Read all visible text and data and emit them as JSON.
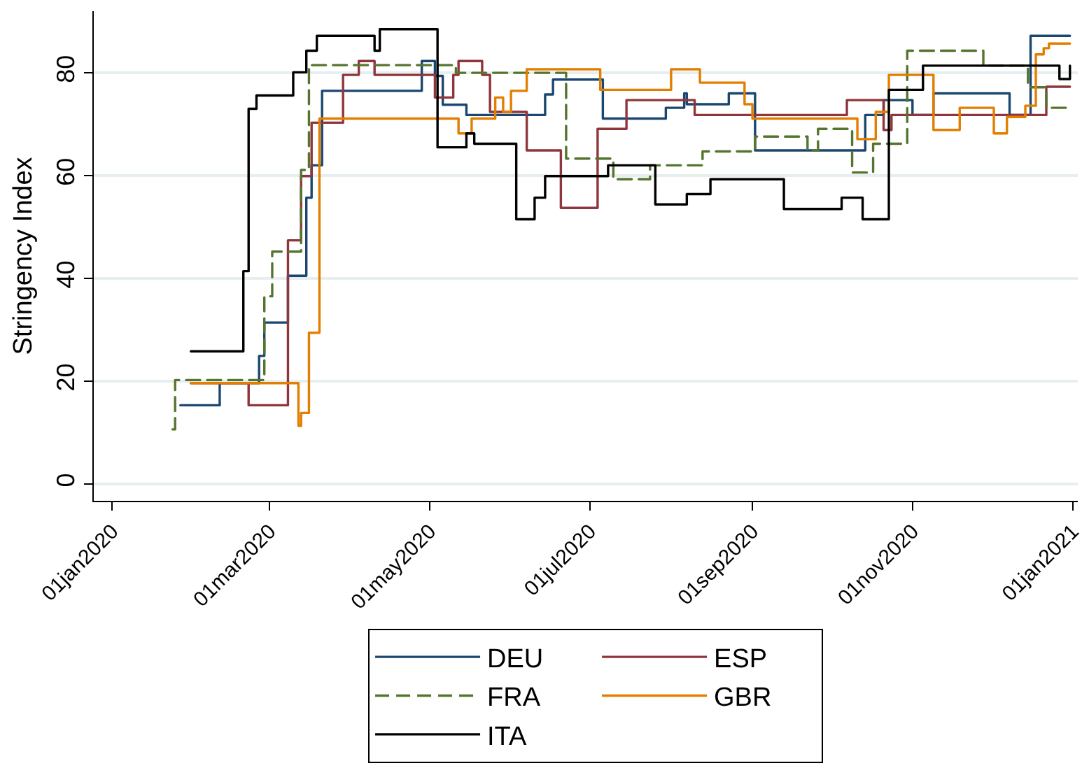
{
  "chart_data": {
    "type": "step",
    "ylabel": "Stringency Index",
    "xlim": [
      "2019-12-25",
      "2021-01-03"
    ],
    "xticks": [
      {
        "value": "2020-01-01",
        "label": "01jan2020"
      },
      {
        "value": "2020-03-01",
        "label": "01mar2020"
      },
      {
        "value": "2020-05-01",
        "label": "01may2020"
      },
      {
        "value": "2020-07-01",
        "label": "01jul2020"
      },
      {
        "value": "2020-09-01",
        "label": "01sep2020"
      },
      {
        "value": "2020-11-01",
        "label": "01nov2020"
      },
      {
        "value": "2021-01-01",
        "label": "01jan2021"
      }
    ],
    "ylim": [
      -3.3,
      92
    ],
    "yticks": [
      0,
      20,
      40,
      60,
      80
    ],
    "grid": "y",
    "legend": "bottom",
    "series": [
      {
        "name": "DEU",
        "color": "#1a476f",
        "line_style": "solid",
        "x": [
          "2020-01-27",
          "2020-02-11",
          "2020-02-26",
          "2020-02-28",
          "2020-03-08",
          "2020-03-15",
          "2020-03-17",
          "2020-03-21",
          "2020-04-28",
          "2020-05-03",
          "2020-05-06",
          "2020-05-15",
          "2020-06-14",
          "2020-06-17",
          "2020-07-06",
          "2020-07-30",
          "2020-08-06",
          "2020-08-07",
          "2020-08-23",
          "2020-09-02",
          "2020-10-14",
          "2020-10-21",
          "2020-11-01",
          "2020-11-09",
          "2020-12-08",
          "2020-12-16",
          "2020-12-31"
        ],
        "values": [
          15.3,
          19.6,
          24.9,
          31.4,
          40.5,
          55.7,
          62.0,
          76.5,
          82.3,
          79.4,
          73.8,
          71.8,
          75.8,
          78.7,
          71.1,
          73.2,
          76.0,
          73.9,
          76.0,
          64.9,
          71.8,
          74.7,
          71.8,
          76.0,
          71.8,
          87.2,
          87.2
        ]
      },
      {
        "name": "ESP",
        "color": "#90353b",
        "line_style": "solid",
        "x": [
          "2020-01-31",
          "2020-02-22",
          "2020-03-08",
          "2020-03-13",
          "2020-03-17",
          "2020-03-29",
          "2020-04-04",
          "2020-04-10",
          "2020-05-03",
          "2020-05-10",
          "2020-05-12",
          "2020-05-21",
          "2020-05-24",
          "2020-06-07",
          "2020-06-20",
          "2020-07-04",
          "2020-07-15",
          "2020-08-10",
          "2020-10-07",
          "2020-10-21",
          "2020-10-24",
          "2020-12-22",
          "2020-12-31"
        ],
        "values": [
          19.6,
          15.3,
          47.4,
          59.9,
          70.3,
          79.6,
          82.3,
          79.6,
          75.2,
          79.6,
          82.3,
          79.6,
          72.4,
          64.9,
          53.7,
          69.1,
          74.7,
          71.8,
          74.7,
          68.9,
          71.8,
          77.3,
          77.3
        ]
      },
      {
        "name": "FRA",
        "color": "#55752f",
        "line_style": "dashed",
        "x": [
          "2020-01-24",
          "2020-01-25",
          "2020-02-28",
          "2020-03-02",
          "2020-03-13",
          "2020-03-16",
          "2020-05-11",
          "2020-06-22",
          "2020-07-10",
          "2020-07-24",
          "2020-08-13",
          "2020-09-02",
          "2020-09-22",
          "2020-09-26",
          "2020-10-09",
          "2020-10-17",
          "2020-10-30",
          "2020-11-28",
          "2020-12-15",
          "2020-12-22",
          "2020-12-31"
        ],
        "values": [
          10.6,
          20.2,
          36.5,
          45.2,
          61.1,
          81.5,
          80.0,
          63.3,
          59.3,
          62.0,
          64.7,
          67.6,
          64.9,
          69.1,
          60.6,
          66.2,
          84.3,
          81.4,
          77.2,
          73.2,
          73.2
        ]
      },
      {
        "name": "GBR",
        "color": "#e37e00",
        "line_style": "solid",
        "x": [
          "2020-01-31",
          "2020-03-12",
          "2020-03-13",
          "2020-03-16",
          "2020-03-20",
          "2020-05-12",
          "2020-05-17",
          "2020-05-26",
          "2020-05-29",
          "2020-06-01",
          "2020-06-07",
          "2020-07-05",
          "2020-08-01",
          "2020-08-12",
          "2020-08-29",
          "2020-09-01",
          "2020-10-11",
          "2020-10-18",
          "2020-10-23",
          "2020-11-09",
          "2020-11-19",
          "2020-12-02",
          "2020-12-07",
          "2020-12-14",
          "2020-12-18",
          "2020-12-21",
          "2020-12-23",
          "2020-12-31"
        ],
        "values": [
          19.6,
          11.3,
          13.8,
          29.4,
          71.1,
          68.2,
          71.1,
          75.2,
          72.4,
          76.5,
          80.7,
          76.7,
          80.7,
          78.1,
          73.9,
          71.1,
          67.1,
          72.4,
          79.6,
          68.9,
          73.2,
          68.2,
          71.4,
          73.6,
          83.6,
          84.8,
          85.7,
          85.7
        ]
      },
      {
        "name": "ITA",
        "color": "#000000",
        "line_style": "solid",
        "x": [
          "2020-01-31",
          "2020-02-20",
          "2020-02-22",
          "2020-02-25",
          "2020-03-10",
          "2020-03-15",
          "2020-03-19",
          "2020-04-10",
          "2020-04-12",
          "2020-05-04",
          "2020-05-15",
          "2020-05-18",
          "2020-06-03",
          "2020-06-10",
          "2020-06-14",
          "2020-07-08",
          "2020-07-26",
          "2020-08-07",
          "2020-08-16",
          "2020-09-13",
          "2020-10-05",
          "2020-10-13",
          "2020-10-23",
          "2020-11-05",
          "2020-12-27",
          "2020-12-31"
        ],
        "values": [
          25.8,
          41.4,
          73.0,
          75.6,
          80.1,
          84.3,
          87.2,
          84.3,
          88.5,
          65.5,
          68.2,
          66.2,
          51.5,
          55.7,
          59.9,
          62.0,
          54.4,
          56.4,
          59.3,
          53.5,
          55.7,
          51.5,
          76.7,
          81.4,
          78.8,
          81.4
        ]
      }
    ]
  }
}
